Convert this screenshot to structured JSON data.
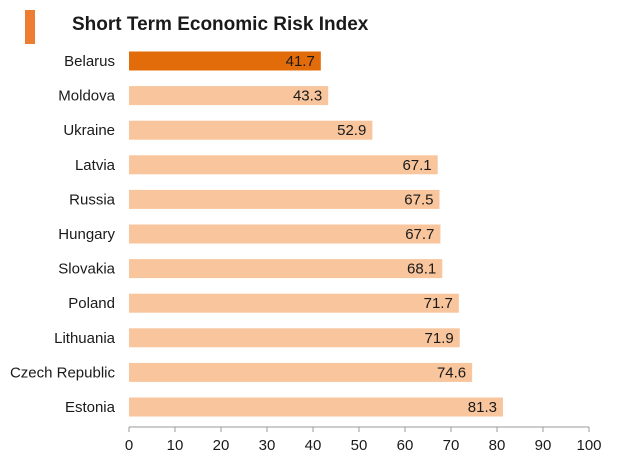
{
  "colors": {
    "accent": "#ed7d31",
    "highlight": "#e36c0a",
    "bar": "#f8c59c",
    "axis": "#9a9a9a",
    "text": "#1a1a1a"
  },
  "chart_data": {
    "type": "bar",
    "orientation": "horizontal",
    "title": "Short Term Economic Risk Index",
    "categories": [
      "Belarus",
      "Moldova",
      "Ukraine",
      "Latvia",
      "Russia",
      "Hungary",
      "Slovakia",
      "Poland",
      "Lithuania",
      "Czech Republic",
      "Estonia"
    ],
    "values": [
      41.7,
      43.3,
      52.9,
      67.1,
      67.5,
      67.7,
      68.1,
      71.7,
      71.9,
      74.6,
      81.3
    ],
    "value_labels": [
      "41.7",
      "43.3",
      "52.9",
      "67.1",
      "67.5",
      "67.7",
      "68.1",
      "71.7",
      "71.9",
      "74.6",
      "81.3"
    ],
    "highlighted_category": "Belarus",
    "xlim": [
      0,
      100
    ],
    "x_ticks": [
      0,
      10,
      20,
      30,
      40,
      50,
      60,
      70,
      80,
      90,
      100
    ],
    "x_tick_labels": [
      "0",
      "10",
      "20",
      "30",
      "40",
      "50",
      "60",
      "70",
      "80",
      "90",
      "100"
    ],
    "grid": false,
    "legend": "none"
  }
}
